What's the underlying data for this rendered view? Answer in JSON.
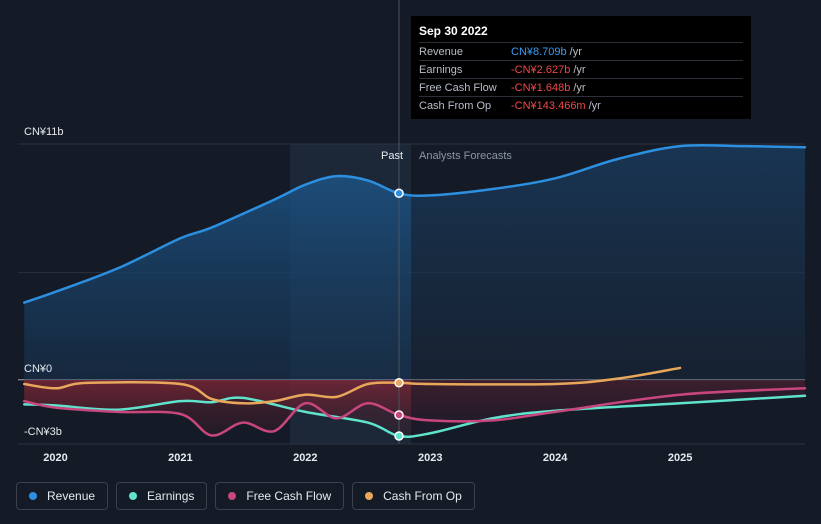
{
  "chart_data": {
    "type": "line",
    "y_labels": [
      {
        "value": 11,
        "label": "CN¥11b"
      },
      {
        "value": 0,
        "label": "CN¥0"
      },
      {
        "value": -3,
        "label": "-CN¥3b"
      }
    ],
    "ylim": [
      -3,
      11
    ],
    "xlim": [
      2019.7,
      2026.0
    ],
    "x_ticks": [
      {
        "value": 2020,
        "label": "2020"
      },
      {
        "value": 2021,
        "label": "2021"
      },
      {
        "value": 2022,
        "label": "2022"
      },
      {
        "value": 2023,
        "label": "2023"
      },
      {
        "value": 2024,
        "label": "2024"
      },
      {
        "value": 2025,
        "label": "2025"
      }
    ],
    "divider_x": 2022.75,
    "past_label": "Past",
    "forecast_label": "Analysts Forecasts",
    "series": [
      {
        "name": "Revenue",
        "color": "#2d8fe0",
        "points": [
          [
            2019.75,
            3.6
          ],
          [
            2020,
            4.1
          ],
          [
            2020.5,
            5.2
          ],
          [
            2021,
            6.6
          ],
          [
            2021.25,
            7.1
          ],
          [
            2021.75,
            8.4
          ],
          [
            2022,
            9.1
          ],
          [
            2022.25,
            9.5
          ],
          [
            2022.5,
            9.3
          ],
          [
            2022.75,
            8.7
          ],
          [
            2023,
            8.6
          ],
          [
            2023.5,
            8.9
          ],
          [
            2024,
            9.4
          ],
          [
            2024.5,
            10.3
          ],
          [
            2025,
            10.9
          ],
          [
            2025.5,
            10.9
          ],
          [
            2026,
            10.85
          ]
        ]
      },
      {
        "name": "Earnings",
        "color": "#5fe3cc",
        "points": [
          [
            2019.75,
            -1.15
          ],
          [
            2020,
            -1.2
          ],
          [
            2020.5,
            -1.4
          ],
          [
            2021,
            -1.0
          ],
          [
            2021.25,
            -1.05
          ],
          [
            2021.5,
            -0.85
          ],
          [
            2022,
            -1.5
          ],
          [
            2022.5,
            -2.0
          ],
          [
            2022.75,
            -2.627
          ],
          [
            2023,
            -2.5
          ],
          [
            2023.5,
            -1.8
          ],
          [
            2024,
            -1.45
          ],
          [
            2025,
            -1.1
          ],
          [
            2026,
            -0.75
          ]
        ]
      },
      {
        "name": "Free Cash Flow",
        "color": "#c8467e",
        "points": [
          [
            2019.75,
            -1.0
          ],
          [
            2020,
            -1.3
          ],
          [
            2020.5,
            -1.5
          ],
          [
            2021,
            -1.6
          ],
          [
            2021.25,
            -2.6
          ],
          [
            2021.5,
            -2.0
          ],
          [
            2021.75,
            -2.4
          ],
          [
            2022,
            -1.1
          ],
          [
            2022.25,
            -1.8
          ],
          [
            2022.5,
            -1.1
          ],
          [
            2022.75,
            -1.648
          ],
          [
            2023,
            -1.9
          ],
          [
            2023.5,
            -1.9
          ],
          [
            2024,
            -1.5
          ],
          [
            2025,
            -0.7
          ],
          [
            2026,
            -0.4
          ]
        ]
      },
      {
        "name": "Cash From Op",
        "color": "#e8a75a",
        "points": [
          [
            2019.75,
            -0.2
          ],
          [
            2020,
            -0.4
          ],
          [
            2020.25,
            -0.15
          ],
          [
            2021,
            -0.2
          ],
          [
            2021.25,
            -0.9
          ],
          [
            2021.5,
            -1.1
          ],
          [
            2021.75,
            -1.0
          ],
          [
            2022,
            -0.7
          ],
          [
            2022.25,
            -0.8
          ],
          [
            2022.5,
            -0.2
          ],
          [
            2022.75,
            -0.143
          ],
          [
            2023,
            -0.2
          ],
          [
            2024,
            -0.2
          ],
          [
            2024.5,
            0.05
          ],
          [
            2025,
            0.55
          ]
        ]
      }
    ]
  },
  "tooltip": {
    "date": "Sep 30 2022",
    "rows": [
      {
        "label": "Revenue",
        "value": "CN¥8.709b",
        "unit": "/yr",
        "color": "#3a9bf0"
      },
      {
        "label": "Earnings",
        "value": "-CN¥2.627b",
        "unit": "/yr",
        "color": "#f04848"
      },
      {
        "label": "Free Cash Flow",
        "value": "-CN¥1.648b",
        "unit": "/yr",
        "color": "#f04848"
      },
      {
        "label": "Cash From Op",
        "value": "-CN¥143.466m",
        "unit": "/yr",
        "color": "#f04848"
      }
    ]
  },
  "legend": [
    {
      "label": "Revenue",
      "color": "#2d8fe0"
    },
    {
      "label": "Earnings",
      "color": "#5fe3cc"
    },
    {
      "label": "Free Cash Flow",
      "color": "#c8467e"
    },
    {
      "label": "Cash From Op",
      "color": "#e8a75a"
    }
  ]
}
